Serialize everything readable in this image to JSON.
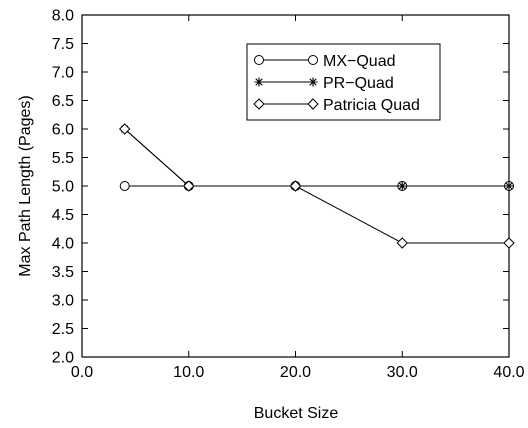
{
  "chart_data": {
    "type": "line",
    "title": "",
    "xlabel": "Bucket Size",
    "ylabel": "Max Path Length (Pages)",
    "xlim": [
      0,
      40
    ],
    "ylim": [
      2,
      8
    ],
    "xticks": [
      0,
      10,
      20,
      30,
      40
    ],
    "xtick_labels": [
      "0.0",
      "10.0",
      "20.0",
      "30.0",
      "40.0"
    ],
    "yticks": [
      2,
      2.5,
      3,
      3.5,
      4,
      4.5,
      5,
      5.5,
      6,
      6.5,
      7,
      7.5,
      8
    ],
    "ytick_labels": [
      "2.0",
      "2.5",
      "3.0",
      "3.5",
      "4.0",
      "4.5",
      "5.0",
      "5.5",
      "6.0",
      "6.5",
      "7.0",
      "7.5",
      "8.0"
    ],
    "grid": false,
    "legend_position": "top-right",
    "line_color": "#000000",
    "series": [
      {
        "name": "MX−Quad",
        "marker": "circle",
        "x": [
          4,
          10,
          20,
          30,
          40
        ],
        "y": [
          5,
          5,
          5,
          5,
          5
        ]
      },
      {
        "name": "PR−Quad",
        "marker": "star",
        "x": [
          4,
          10,
          20,
          30,
          40
        ],
        "y": [
          6,
          5,
          5,
          5,
          5
        ]
      },
      {
        "name": "Patricia Quad",
        "marker": "diamond",
        "x": [
          4,
          10,
          20,
          30,
          40
        ],
        "y": [
          6,
          5,
          5,
          4,
          4
        ]
      }
    ]
  }
}
